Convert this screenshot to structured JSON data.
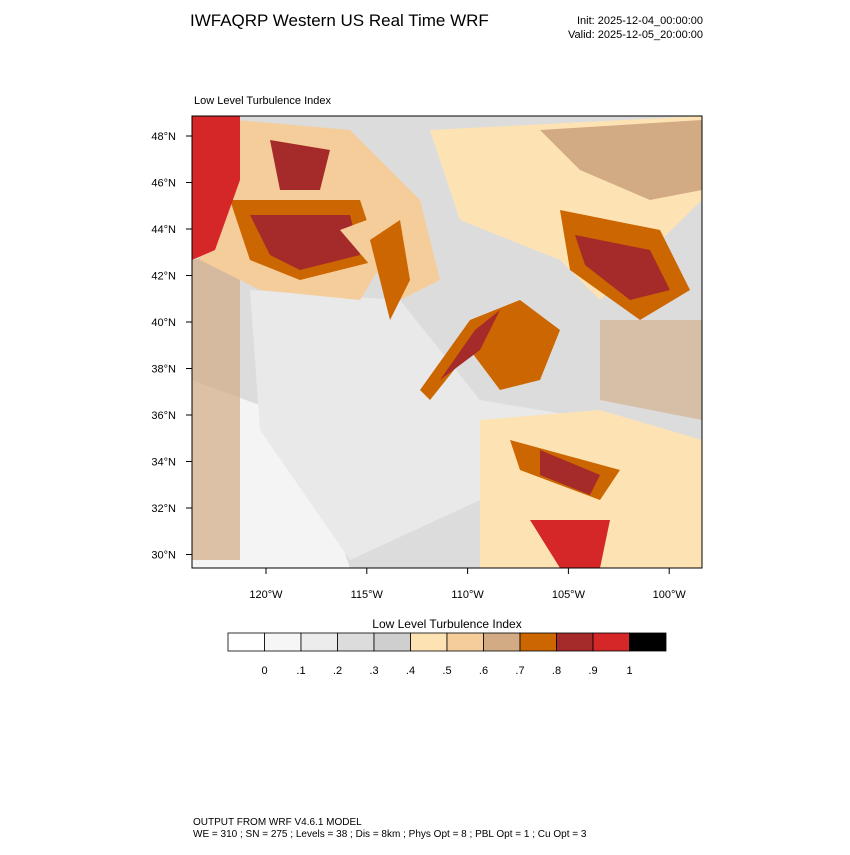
{
  "header": {
    "title": "IWFAQRP Western US Real Time WRF",
    "init": "Init: 2025-12-04_00:00:00",
    "valid": "Valid: 2025-12-05_20:00:00"
  },
  "map": {
    "title": "Low Level Turbulence Index",
    "lat_labels": [
      "48°N",
      "46°N",
      "44°N",
      "42°N",
      "40°N",
      "38°N",
      "36°N",
      "34°N",
      "32°N",
      "30°N"
    ],
    "lon_labels": [
      "120°W",
      "115°W",
      "110°W",
      "105°W",
      "100°W"
    ]
  },
  "colorbar": {
    "title": "Low Level Turbulence Index",
    "labels": [
      "0",
      ".1",
      ".2",
      ".3",
      ".4",
      ".5",
      ".6",
      ".7",
      ".8",
      ".9",
      "1"
    ],
    "colors": [
      "#ffffff",
      "#f6f6f6",
      "#ececec",
      "#dcdcdc",
      "#cfcfcf",
      "#fde3b3",
      "#f5cd9a",
      "#d2ab84",
      "#cc6600",
      "#a52a2a",
      "#d62728",
      "#000000"
    ]
  },
  "footer": {
    "line1": "OUTPUT FROM WRF V4.6.1 MODEL",
    "line2": "WE = 310 ; SN = 275 ; Levels = 38 ; Dis = 8km ; Phys Opt = 8 ; PBL Opt = 1 ; Cu Opt = 3"
  }
}
